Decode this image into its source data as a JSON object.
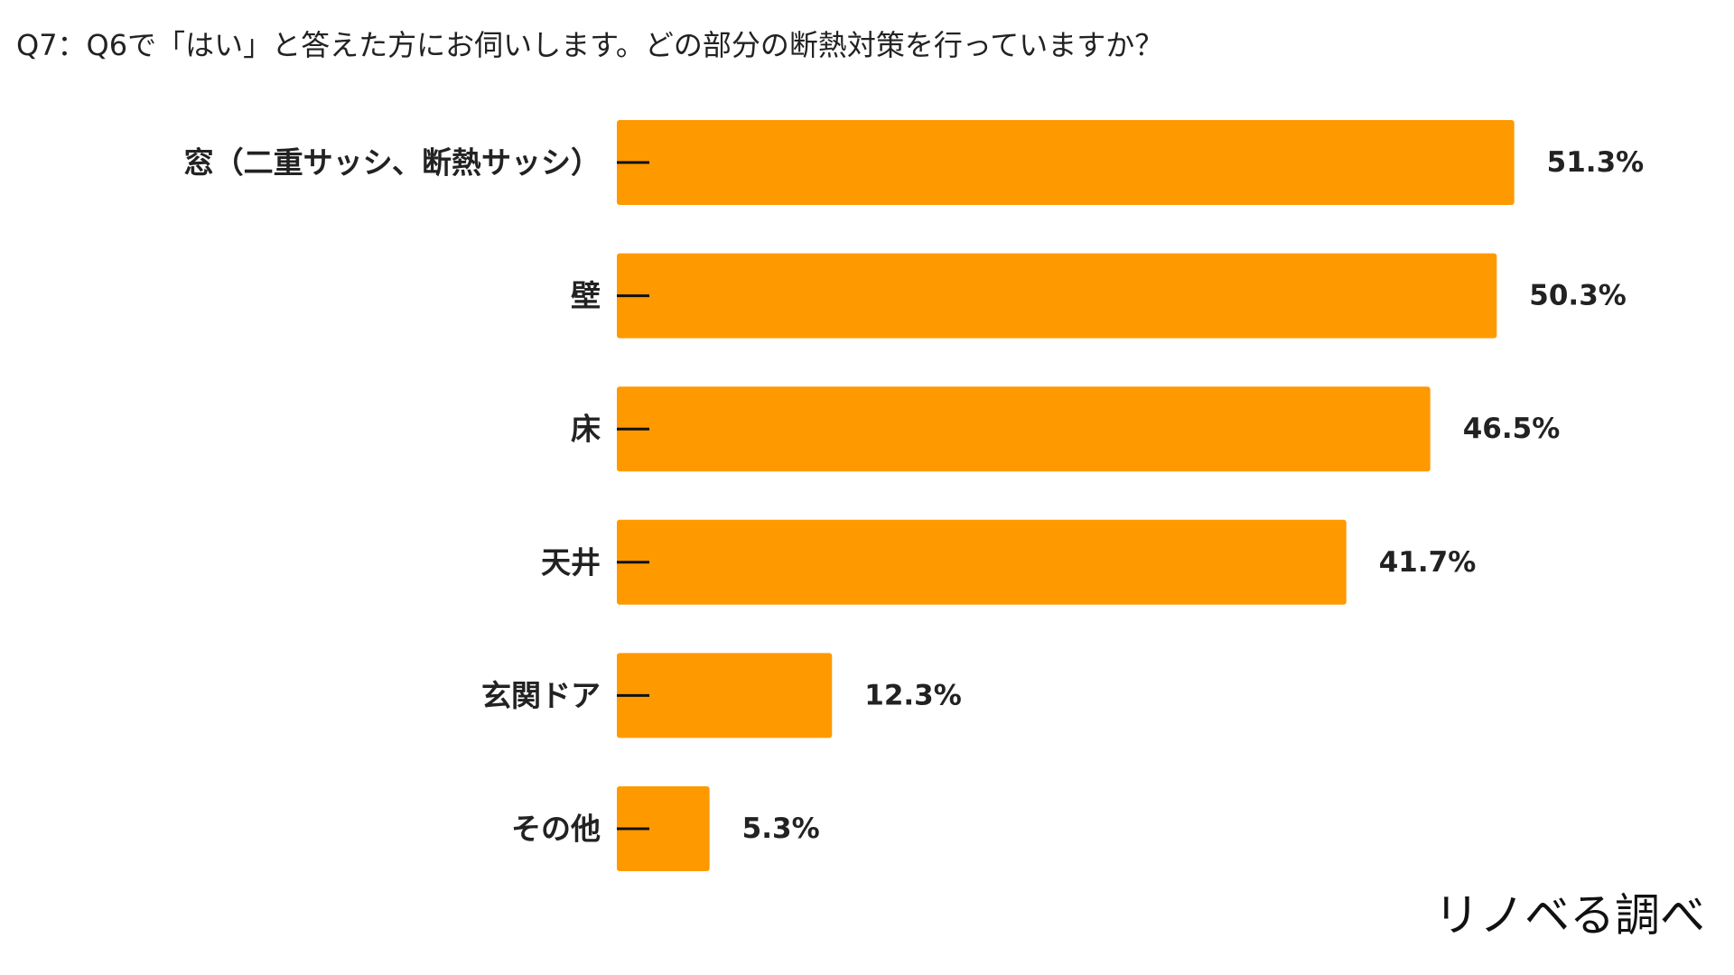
{
  "chart_data": {
    "type": "bar",
    "orientation": "horizontal",
    "title": "Q7：Q6で「はい」と答えた方にお伺いします。どの部分の断熱対策を行っていますか？",
    "categories": [
      "窓（二重サッシ、断熱サッシ）",
      "壁",
      "床",
      "天井",
      "玄関ドア",
      "その他"
    ],
    "values": [
      51.3,
      50.3,
      46.5,
      41.7,
      12.3,
      5.3
    ],
    "value_labels": [
      "51.3%",
      "50.3%",
      "46.5%",
      "41.7%",
      "12.3%",
      "5.3%"
    ],
    "unit": "%",
    "xlim": [
      0,
      60
    ],
    "grid": false,
    "legend": "none",
    "bar_color": "#FF9900",
    "tick_color": "#111111"
  },
  "source": "リノベる調べ"
}
